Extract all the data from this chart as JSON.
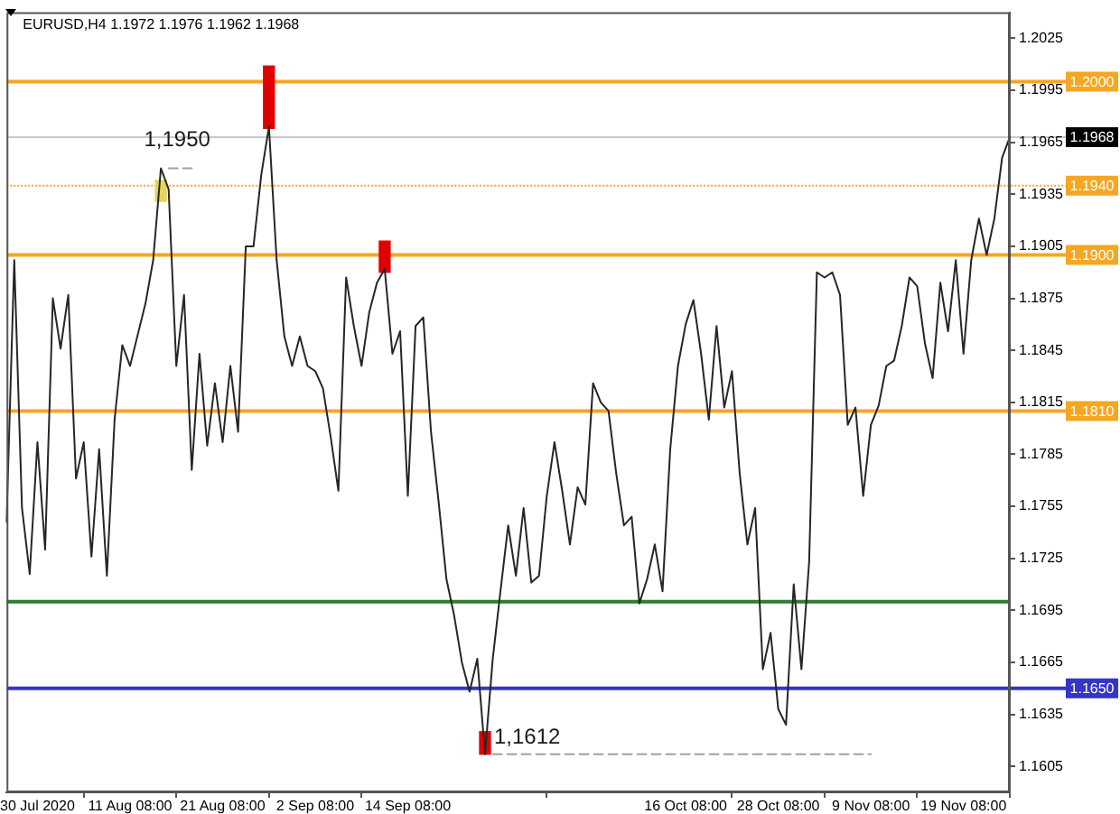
{
  "chart_data": {
    "type": "line",
    "title": "EURUSD,H4 1.1972 1.1976 1.1962 1.1968",
    "categories": [
      null,
      null,
      null,
      null,
      "30 Jul 2020",
      null,
      null,
      null,
      null,
      null,
      null,
      null,
      null,
      null,
      null,
      null,
      "11 Aug 08:00",
      null,
      null,
      null,
      null,
      null,
      null,
      null,
      null,
      null,
      null,
      null,
      "21 Aug 08:00",
      null,
      null,
      null,
      null,
      null,
      null,
      null,
      null,
      null,
      null,
      null,
      "2 Sep 08:00",
      null,
      null,
      null,
      null,
      null,
      null,
      null,
      null,
      null,
      null,
      null,
      "14 Sep 08:00",
      null,
      null,
      null,
      null,
      null,
      null,
      null,
      null,
      null,
      null,
      null,
      null,
      null,
      null,
      null,
      null,
      null,
      null,
      null,
      null,
      null,
      null,
      null,
      null,
      null,
      null,
      null,
      null,
      null,
      null,
      null,
      null,
      null,
      null,
      null,
      "16 Oct 08:00",
      null,
      null,
      null,
      null,
      null,
      null,
      null,
      null,
      null,
      null,
      null,
      "28 Oct 08:00",
      null,
      null,
      null,
      null,
      null,
      null,
      null,
      null,
      null,
      null,
      null,
      "9 Nov 08:00",
      null,
      null,
      null,
      null,
      null,
      null,
      null,
      null,
      null,
      null,
      null,
      "19 Nov 08:00",
      null,
      null,
      null,
      null,
      null,
      null
    ],
    "series": [
      {
        "color": "#262626",
        "values": [
          1.1746,
          1.1897,
          1.1754,
          1.1716,
          1.1792,
          1.173,
          1.1875,
          1.1846,
          1.1877,
          1.1771,
          1.1792,
          1.1726,
          1.1788,
          1.1715,
          1.1805,
          1.1848,
          1.1836,
          1.1854,
          1.1872,
          1.1897,
          1.195,
          1.1938,
          1.1836,
          1.1877,
          1.1776,
          1.1843,
          1.179,
          1.1826,
          1.1792,
          1.1836,
          1.1798,
          1.1905,
          1.1905,
          1.1946,
          1.1974,
          1.1897,
          1.1853,
          1.1836,
          1.1853,
          1.1836,
          1.1833,
          1.1823,
          1.1795,
          1.1764,
          1.1887,
          1.1859,
          1.1836,
          1.1867,
          1.1884,
          1.1892,
          1.1843,
          1.1856,
          1.1761,
          1.1859,
          1.1864,
          1.1798,
          1.1757,
          1.1713,
          1.1692,
          1.1665,
          1.1648,
          1.1667,
          1.1612,
          1.1667,
          1.1706,
          1.1744,
          1.1715,
          1.1754,
          1.1711,
          1.1715,
          1.1761,
          1.1792,
          1.1764,
          1.1733,
          1.1766,
          1.1756,
          1.1826,
          1.1815,
          1.181,
          1.1774,
          1.1744,
          1.1749,
          1.1699,
          1.1713,
          1.1733,
          1.1706,
          1.1788,
          1.1836,
          1.186,
          1.1874,
          1.1843,
          1.1805,
          1.1859,
          1.1812,
          1.1833,
          1.1774,
          1.1733,
          1.1754,
          1.1661,
          1.1682,
          1.1638,
          1.1629,
          1.171,
          1.1661,
          1.1723,
          1.189,
          1.1887,
          1.189,
          1.1877,
          1.1802,
          1.1812,
          1.1761,
          1.1802,
          1.1813,
          1.1836,
          1.1839,
          1.1859,
          1.1887,
          1.1882,
          1.1849,
          1.1829,
          1.1884,
          1.1856,
          1.1897,
          1.1843,
          1.1897,
          1.1921,
          1.19,
          1.1921,
          1.1956,
          1.1968
        ]
      },
      {
        "type": "bar",
        "color": "#e5d45a",
        "base": [
          null,
          null,
          null,
          null,
          null,
          null,
          null,
          null,
          null,
          null,
          null,
          null,
          null,
          null,
          null,
          null,
          null,
          null,
          null,
          null,
          1.1931,
          null,
          null,
          null,
          null,
          null,
          null,
          null,
          null,
          null,
          null,
          null,
          null,
          null,
          null,
          null,
          null,
          null,
          null,
          null,
          null,
          null,
          null,
          null,
          null,
          null,
          null,
          null,
          null,
          null,
          null,
          null,
          null,
          null,
          null,
          null,
          null,
          null,
          null,
          null,
          null,
          null,
          null,
          null,
          null,
          null,
          null,
          null,
          null,
          null,
          null,
          null,
          null,
          null,
          null,
          null,
          null,
          null,
          null,
          null,
          null,
          null,
          null,
          null,
          null,
          null,
          null,
          null,
          null,
          null,
          null,
          null,
          null,
          null,
          null,
          null,
          null,
          null,
          null,
          null,
          null,
          null,
          null,
          null,
          null,
          null,
          null,
          null,
          null,
          null,
          null,
          null,
          null,
          null,
          null,
          null,
          null,
          null,
          null,
          null,
          null,
          null,
          null,
          null,
          null,
          null,
          null,
          null,
          null,
          null,
          null
        ],
        "values": [
          null,
          null,
          null,
          null,
          null,
          null,
          null,
          null,
          null,
          null,
          null,
          null,
          null,
          null,
          null,
          null,
          null,
          null,
          null,
          null,
          0.0012,
          null,
          null,
          null,
          null,
          null,
          null,
          null,
          null,
          null,
          null,
          null,
          null,
          null,
          null,
          null,
          null,
          null,
          null,
          null,
          null,
          null,
          null,
          null,
          null,
          null,
          null,
          null,
          null,
          null,
          null,
          null,
          null,
          null,
          null,
          null,
          null,
          null,
          null,
          null,
          null,
          null,
          null,
          null,
          null,
          null,
          null,
          null,
          null,
          null,
          null,
          null,
          null,
          null,
          null,
          null,
          null,
          null,
          null,
          null,
          null,
          null,
          null,
          null,
          null,
          null,
          null,
          null,
          null,
          null,
          null,
          null,
          null,
          null,
          null,
          null,
          null,
          null,
          null,
          null,
          null,
          null,
          null,
          null,
          null,
          null,
          null,
          null,
          null,
          null,
          null,
          null,
          null,
          null,
          null,
          null,
          null,
          null,
          null,
          null,
          null,
          null,
          null,
          null,
          null,
          null,
          null,
          null,
          null,
          null,
          null
        ]
      },
      {
        "type": "bar",
        "color": "#e00000",
        "base": [
          null,
          null,
          null,
          null,
          null,
          null,
          null,
          null,
          null,
          null,
          null,
          null,
          null,
          null,
          null,
          null,
          null,
          null,
          null,
          null,
          null,
          null,
          null,
          null,
          null,
          null,
          null,
          null,
          null,
          null,
          null,
          null,
          null,
          null,
          1.1973,
          null,
          null,
          null,
          null,
          null,
          null,
          null,
          null,
          null,
          null,
          null,
          null,
          null,
          null,
          1.189,
          null,
          null,
          null,
          null,
          null,
          null,
          null,
          null,
          null,
          null,
          null,
          null,
          1.1612,
          null,
          null,
          null,
          null,
          null,
          null,
          null,
          null,
          null,
          null,
          null,
          null,
          null,
          null,
          null,
          null,
          null,
          null,
          null,
          null,
          null,
          null,
          null,
          null,
          null,
          null,
          null,
          null,
          null,
          null,
          null,
          null,
          null,
          null,
          null,
          null,
          null,
          null,
          null,
          null,
          null,
          null,
          null,
          null,
          null,
          null,
          null,
          null,
          null,
          null,
          null,
          null,
          null,
          null,
          null,
          null,
          null,
          null,
          null,
          null,
          null,
          null,
          null,
          null,
          null,
          null,
          null,
          null
        ],
        "values": [
          null,
          null,
          null,
          null,
          null,
          null,
          null,
          null,
          null,
          null,
          null,
          null,
          null,
          null,
          null,
          null,
          null,
          null,
          null,
          null,
          null,
          null,
          null,
          null,
          null,
          null,
          null,
          null,
          null,
          null,
          null,
          null,
          null,
          null,
          0.0036,
          null,
          null,
          null,
          null,
          null,
          null,
          null,
          null,
          null,
          null,
          null,
          null,
          null,
          null,
          0.0018,
          null,
          null,
          null,
          null,
          null,
          null,
          null,
          null,
          null,
          null,
          null,
          null,
          0.0013,
          null,
          null,
          null,
          null,
          null,
          null,
          null,
          null,
          null,
          null,
          null,
          null,
          null,
          null,
          null,
          null,
          null,
          null,
          null,
          null,
          null,
          null,
          null,
          null,
          null,
          null,
          null,
          null,
          null,
          null,
          null,
          null,
          null,
          null,
          null,
          null,
          null,
          null,
          null,
          null,
          null,
          null,
          null,
          null,
          null,
          null,
          null,
          null,
          null,
          null,
          null,
          null,
          null,
          null,
          null,
          null,
          null,
          null,
          null,
          null,
          null,
          null,
          null,
          null,
          null,
          null,
          null,
          null
        ]
      },
      {
        "type": "line",
        "color": "#a0a0a0",
        "line_style": "dashed",
        "values": [
          null,
          null,
          null,
          null,
          null,
          null,
          null,
          null,
          null,
          null,
          null,
          null,
          null,
          null,
          null,
          null,
          null,
          null,
          null,
          null,
          null,
          1.195,
          1.195,
          1.195,
          1.195,
          null,
          null,
          null,
          null,
          null,
          null,
          null,
          null,
          null,
          null,
          null,
          null,
          null,
          null,
          null,
          null,
          null,
          null,
          null,
          null,
          null,
          null,
          null,
          null,
          null,
          null,
          null,
          null,
          null,
          null,
          null,
          null,
          null,
          null,
          null,
          null,
          null,
          null,
          null,
          null,
          null,
          null,
          null,
          null,
          null,
          null,
          null,
          null,
          null,
          null,
          null,
          null,
          null,
          null,
          null,
          null,
          null,
          null,
          null,
          null,
          null,
          null,
          null,
          null,
          null,
          null,
          null,
          null,
          null,
          null,
          null,
          null,
          null,
          null,
          null,
          null,
          null,
          null,
          null,
          null,
          null,
          null,
          null,
          null,
          null,
          null,
          null,
          null,
          null,
          null,
          null,
          null,
          null,
          null,
          null,
          null,
          null,
          null,
          null,
          null,
          null,
          null,
          null,
          null,
          null,
          null
        ]
      },
      {
        "type": "line",
        "color": "#a0a0a0",
        "line_style": "dashed",
        "values": [
          null,
          null,
          null,
          null,
          null,
          null,
          null,
          null,
          null,
          null,
          null,
          null,
          null,
          null,
          null,
          null,
          null,
          null,
          null,
          null,
          null,
          null,
          null,
          null,
          null,
          null,
          null,
          null,
          null,
          null,
          null,
          null,
          null,
          null,
          null,
          null,
          null,
          null,
          null,
          null,
          null,
          null,
          null,
          null,
          null,
          null,
          null,
          null,
          null,
          null,
          null,
          null,
          null,
          null,
          null,
          null,
          null,
          null,
          null,
          null,
          null,
          null,
          null,
          1.1612,
          1.1612,
          1.1612,
          1.1612,
          1.1612,
          1.1612,
          1.1612,
          1.1612,
          1.1612,
          1.1612,
          1.1612,
          1.1612,
          1.1612,
          1.1612,
          1.1612,
          1.1612,
          1.1612,
          1.1612,
          1.1612,
          1.1612,
          1.1612,
          1.1612,
          1.1612,
          1.1612,
          1.1612,
          1.1612,
          1.1612,
          1.1612,
          1.1612,
          1.1612,
          1.1612,
          1.1612,
          1.1612,
          1.1612,
          1.1612,
          1.1612,
          1.1612,
          1.1612,
          1.1612,
          1.1612,
          1.1612,
          1.1612,
          1.1612,
          1.1612,
          1.1612,
          1.1612,
          1.1612,
          1.1612,
          1.1612,
          1.1612,
          null,
          null,
          null,
          null,
          null,
          null,
          null,
          null,
          null,
          null,
          null,
          null,
          null,
          null,
          null,
          null,
          null,
          null
        ]
      }
    ],
    "ylim": [
      1.159,
      1.204
    ],
    "yticks": [
      1.1605,
      1.1635,
      1.1665,
      1.1695,
      1.1725,
      1.1755,
      1.1785,
      1.1815,
      1.1845,
      1.1875,
      1.1905,
      1.1935,
      1.1965,
      1.1995,
      1.2025
    ],
    "ref_lines": [
      {
        "axis": "y",
        "value": 1.2,
        "label": "1.2000",
        "color": "#f5a623"
      },
      {
        "axis": "y",
        "value": 1.1968,
        "label": "1.1968",
        "color": "#c8c8c8"
      },
      {
        "axis": "y",
        "value": 1.194,
        "label": "1.1940",
        "color": "#f5a623",
        "line_style": "dotted"
      },
      {
        "axis": "y",
        "value": 1.19,
        "label": "1.1900",
        "color": "#f5a623"
      },
      {
        "axis": "y",
        "value": 1.181,
        "label": "1.1810",
        "color": "#f5a623"
      },
      {
        "axis": "y",
        "value": 1.17,
        "color": "#2e7d32"
      },
      {
        "axis": "y",
        "value": 1.165,
        "label": "1.1650",
        "color": "#3535c8"
      }
    ],
    "annotations": [
      {
        "text": "1,1950",
        "y": 1.195
      },
      {
        "text": "1,1612",
        "y": 1.1612
      }
    ]
  }
}
